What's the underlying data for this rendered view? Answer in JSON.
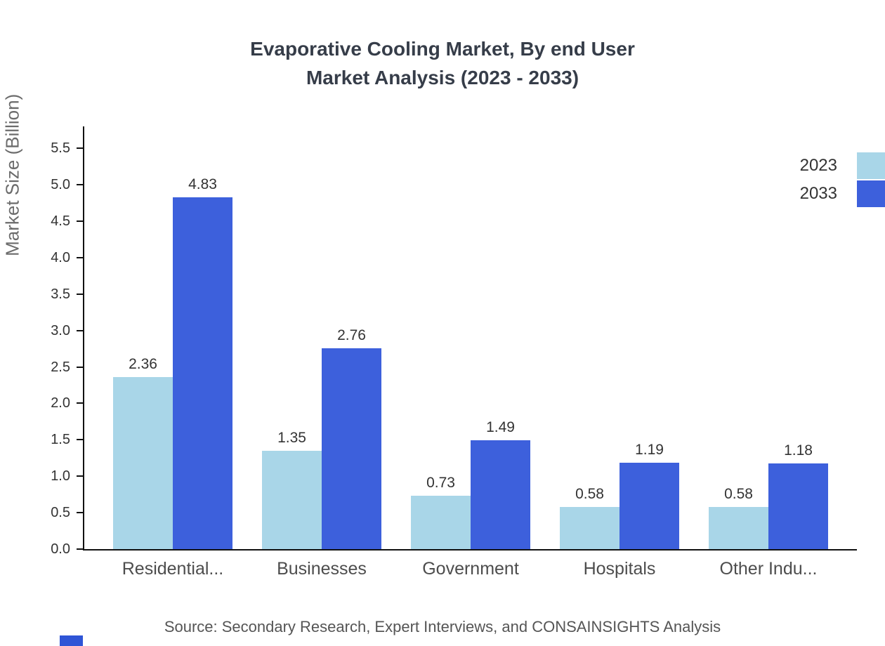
{
  "title_line1": "Evaporative Cooling Market, By end User",
  "title_line2": "Market Analysis (2023 - 2033)",
  "source": "Source: Secondary Research, Expert Interviews, and CONSAINSIGHTS Analysis",
  "colors": {
    "series_2023": "#a9d6e8",
    "series_2033": "#3d60dc",
    "axis": "#111111",
    "logo_fragment": "#2f55d6"
  },
  "chart_data": {
    "type": "bar",
    "title": "Evaporative Cooling Market, By end User Market Analysis (2023 - 2033)",
    "categories": [
      "Residential...",
      "Businesses",
      "Government",
      "Hospitals",
      "Other Indu..."
    ],
    "series": [
      {
        "name": "2023",
        "color": "#a9d6e8",
        "values": [
          2.36,
          1.35,
          0.73,
          0.58,
          0.58
        ]
      },
      {
        "name": "2033",
        "color": "#3d60dc",
        "values": [
          4.83,
          2.76,
          1.49,
          1.19,
          1.18
        ]
      }
    ],
    "xlabel": "",
    "ylabel": "Market Size (Billion)",
    "ylim": [
      0,
      5.8
    ],
    "yticks": [
      0.0,
      0.5,
      1.0,
      1.5,
      2.0,
      2.5,
      3.0,
      3.5,
      4.0,
      4.5,
      5.0,
      5.5
    ],
    "grid": false,
    "legend_position": "top-right",
    "value_labels": true
  }
}
